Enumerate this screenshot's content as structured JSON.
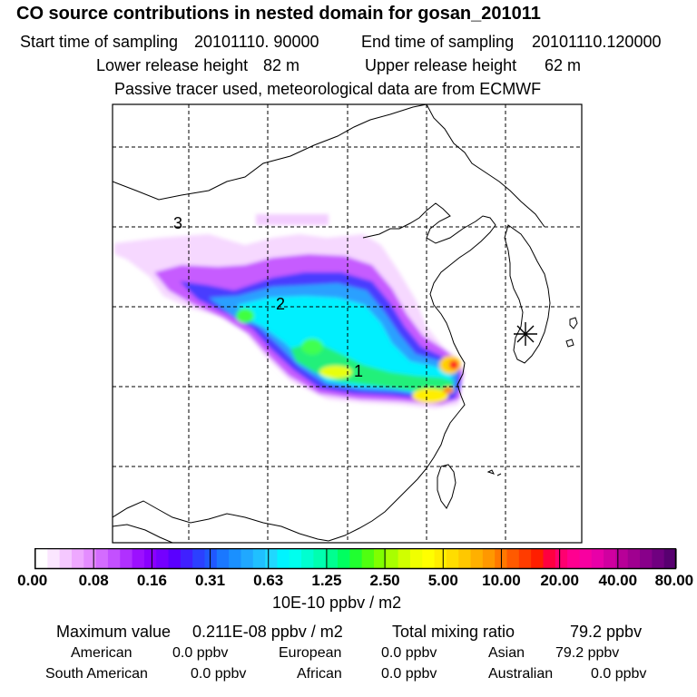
{
  "header": {
    "title": "CO  source contributions in nested domain for gosan_201011",
    "start_label": "Start time of sampling",
    "start_value": "20101110. 90000",
    "end_label": "End time of sampling",
    "end_value": "20101110.120000",
    "lower_label": "Lower release height",
    "lower_value": "82 m",
    "upper_label": "Upper release height",
    "upper_value": "62 m",
    "note": "Passive tracer used, meteorological data are from ECMWF"
  },
  "map": {
    "region_labels": [
      "1",
      "2",
      "3"
    ],
    "receptor_icon": "asterisk-receptor-icon"
  },
  "colorbar": {
    "ticks": [
      "0.00",
      "0.08",
      "0.16",
      "0.31",
      "0.63",
      "1.25",
      "2.50",
      "5.00",
      "10.00",
      "20.00",
      "40.00",
      "80.00"
    ],
    "colors": [
      "#ffffff",
      "#fbe6ff",
      "#f5c8ff",
      "#eea8ff",
      "#e48cff",
      "#d46cff",
      "#c350ff",
      "#b030ff",
      "#9c10ff",
      "#8a00ff",
      "#7400ff",
      "#5a00ff",
      "#4020ff",
      "#2c40ff",
      "#2058ff",
      "#1a78ff",
      "#1a90ff",
      "#20a8ff",
      "#20c0ff",
      "#20d8ff",
      "#00f4ff",
      "#00ffee",
      "#00ffd0",
      "#00ffb0",
      "#00ff90",
      "#00ff60",
      "#20ff30",
      "#50ff10",
      "#80ff00",
      "#a8ff00",
      "#d0ff00",
      "#f0ff00",
      "#ffff00",
      "#ffee00",
      "#ffdd00",
      "#ffc800",
      "#ffb000",
      "#ff9800",
      "#ff7800",
      "#ff5a00",
      "#ff3c00",
      "#ff1e00",
      "#ff0040",
      "#ff0070",
      "#ff0090",
      "#f800a0",
      "#e800a8",
      "#d000a0",
      "#b80098",
      "#a00090",
      "#88008a",
      "#700080",
      "#580070"
    ],
    "units": "10E-10 ppbv / m2"
  },
  "stats": {
    "max_label": "Maximum value",
    "max_value": "0.211E-08 ppbv / m2",
    "total_label": "Total mixing ratio",
    "total_value": "79.2 ppbv",
    "american_label": "American",
    "american_value": "0.0 ppbv",
    "european_label": "European",
    "european_value": "0.0 ppbv",
    "asian_label": "Asian",
    "asian_value": "79.2 ppbv",
    "south_american_label": "South American",
    "south_american_value": "0.0 ppbv",
    "african_label": "African",
    "african_value": "0.0 ppbv",
    "australian_label": "Australian",
    "australian_value": "0.0 ppbv"
  }
}
